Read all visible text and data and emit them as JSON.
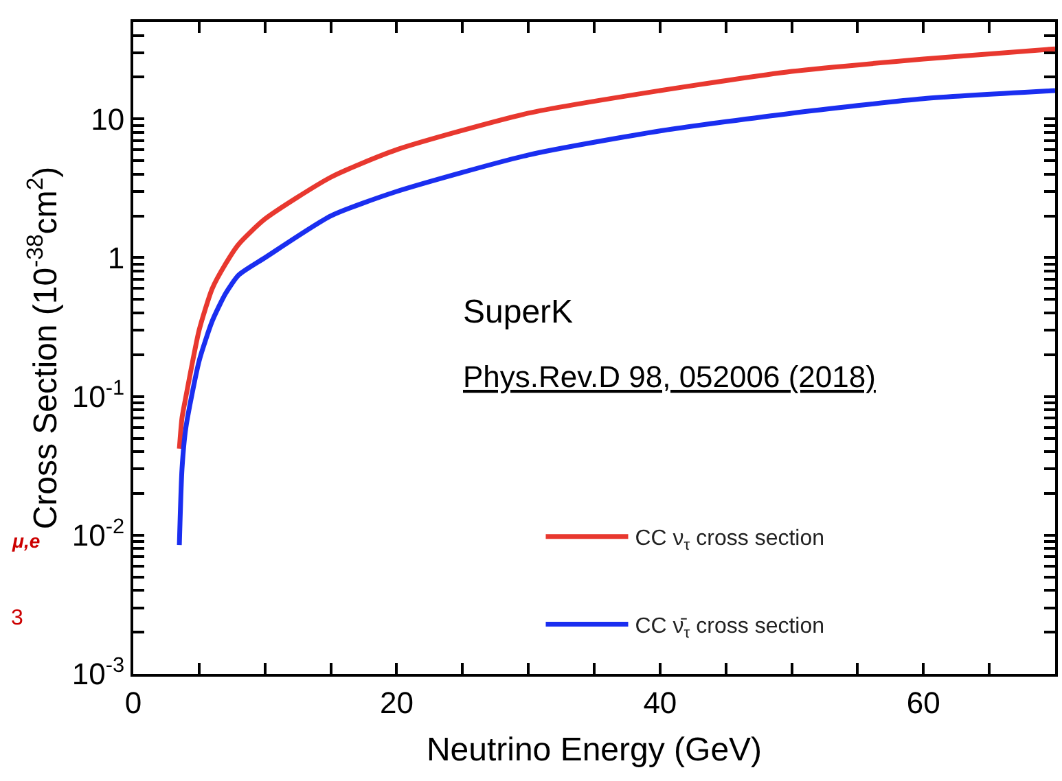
{
  "chart_data": {
    "type": "line",
    "xlabel": "Neutrino Energy (GeV)",
    "ylabel": "Cross Section (10$^{-38}$cm$^{2}$)",
    "log": "y",
    "legend": "bottom right",
    "marker": "none",
    "line_style": "solid",
    "xlim": [
      0,
      70
    ],
    "xticks": [
      0,
      {
        "value": 5,
        "label": null
      },
      {
        "value": 10,
        "label": null
      },
      {
        "value": 15,
        "label": null
      },
      20,
      {
        "value": 25,
        "label": null
      },
      {
        "value": 30,
        "label": null
      },
      {
        "value": 35,
        "label": null
      },
      40,
      {
        "value": 45,
        "label": null
      },
      {
        "value": 50,
        "label": null
      },
      {
        "value": 55,
        "label": null
      },
      60,
      {
        "value": 65,
        "label": null
      }
    ],
    "ylim": [
      0.001,
      50
    ],
    "yticks": [
      {
        "value": 0.001,
        "label": "10$^{-3}$"
      },
      {
        "value": 0.002,
        "label": null
      },
      {
        "value": 0.003,
        "label": null
      },
      {
        "value": 0.004,
        "label": null
      },
      {
        "value": 0.005,
        "label": null
      },
      {
        "value": 0.006,
        "label": null
      },
      {
        "value": 0.007,
        "label": null
      },
      {
        "value": 0.008,
        "label": null
      },
      {
        "value": 0.009,
        "label": null
      },
      {
        "value": 0.01,
        "label": "10$^{-2}$"
      },
      {
        "value": 0.02,
        "label": null
      },
      {
        "value": 0.03,
        "label": null
      },
      {
        "value": 0.04,
        "label": null
      },
      {
        "value": 0.05,
        "label": null
      },
      {
        "value": 0.06,
        "label": null
      },
      {
        "value": 0.07,
        "label": null
      },
      {
        "value": 0.08,
        "label": null
      },
      {
        "value": 0.09,
        "label": null
      },
      {
        "value": 0.1,
        "label": "10$^{-1}$"
      },
      {
        "value": 0.2,
        "label": null
      },
      {
        "value": 0.3,
        "label": null
      },
      {
        "value": 0.4,
        "label": null
      },
      {
        "value": 0.5,
        "label": null
      },
      {
        "value": 0.6,
        "label": null
      },
      {
        "value": 0.7,
        "label": null
      },
      {
        "value": 0.8,
        "label": null
      },
      {
        "value": 0.9,
        "label": null
      },
      1,
      {
        "value": 2,
        "label": null
      },
      {
        "value": 3,
        "label": null
      },
      {
        "value": 4,
        "label": null
      },
      {
        "value": 5,
        "label": null
      },
      {
        "value": 6,
        "label": null
      },
      {
        "value": 7,
        "label": null
      },
      {
        "value": 8,
        "label": null
      },
      {
        "value": 9,
        "label": null
      },
      10,
      {
        "value": 20,
        "label": null
      },
      {
        "value": 30,
        "label": null
      },
      {
        "value": 40,
        "label": null
      },
      {
        "value": 50,
        "label": null
      }
    ],
    "x": [
      3.5,
      3.7,
      4,
      5,
      6,
      7,
      8,
      10,
      15,
      20,
      30,
      40,
      50,
      60,
      70
    ],
    "series": [
      {
        "name": "CC ν$_{τ}$ cross section",
        "color": "#e8382f",
        "values": [
          0.042,
          0.07,
          0.1,
          0.3,
          0.6,
          0.9,
          1.25,
          1.9,
          3.8,
          6,
          11,
          16,
          22,
          27,
          32
        ]
      },
      {
        "name": "CC ν̄$_{τ}$ cross section",
        "color": "#1a2ef0",
        "values": [
          0.0085,
          0.03,
          0.06,
          0.18,
          0.35,
          0.55,
          0.75,
          1.0,
          2.0,
          3.0,
          5.5,
          8.2,
          11,
          14,
          16
        ]
      }
    ],
    "annotations": [
      "SuperK",
      "Phys.Rev.D 98, 052006 (2018)",
      "μ,e",
      "3"
    ]
  }
}
